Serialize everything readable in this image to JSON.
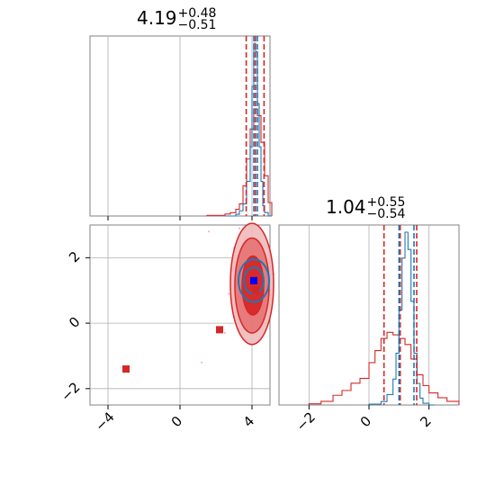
{
  "colors": {
    "red": "#d62728",
    "red_fill_outer": "#f0b9b9",
    "red_fill_mid": "#e57373",
    "red_fill_inner": "#d62728",
    "blue": "#1f77b4",
    "blue_marker": "#0000ff",
    "grid": "#b0b0b0"
  },
  "titles": {
    "param1": {
      "value": "4.19",
      "plus": "+0.48",
      "minus": "−0.51"
    },
    "param2": {
      "value": "1.04",
      "plus": "+0.55",
      "minus": "−0.54"
    }
  },
  "chart_data": {
    "type": "corner",
    "panels": [
      {
        "id": "hist-param1",
        "type": "histogram",
        "xlim": [
          -5,
          5
        ],
        "xticks": [
          -4,
          0,
          4
        ],
        "quantile_lines_red": [
          3.68,
          4.19,
          4.67
        ],
        "quantile_lines_blue": [
          4.1,
          4.3
        ],
        "blue_hist": {
          "bin_edges": [
            2.5,
            2.7,
            2.9,
            3.1,
            3.3,
            3.5,
            3.7,
            3.9,
            4.0,
            4.1,
            4.2,
            4.3,
            4.4,
            4.5,
            4.6,
            4.7,
            4.9,
            5.1
          ],
          "counts": [
            0,
            0,
            0,
            2,
            6,
            14,
            40,
            80,
            150,
            200,
            190,
            130,
            80,
            40,
            12,
            4,
            0
          ]
        },
        "red_hist": {
          "bin_edges": [
            1.5,
            2.0,
            2.5,
            2.8,
            3.1,
            3.3,
            3.5,
            3.7,
            3.9,
            4.1,
            4.3,
            4.5,
            4.7,
            4.9,
            5.1
          ],
          "counts": [
            1,
            1,
            3,
            5,
            10,
            18,
            45,
            85,
            130,
            160,
            150,
            110,
            60,
            20
          ]
        }
      },
      {
        "id": "scatter-2d",
        "type": "contour2d",
        "xlim": [
          -5,
          5
        ],
        "ylim": [
          -2.5,
          3.0
        ],
        "xticks": [
          -4,
          0,
          4
        ],
        "yticks": [
          -2,
          0,
          2
        ],
        "red_contours": [
          {
            "cx": 4.0,
            "cy": 1.2,
            "rx": 1.2,
            "ry": 1.85
          },
          {
            "cx": 4.0,
            "cy": 1.15,
            "rx": 0.95,
            "ry": 1.45
          },
          {
            "cx": 4.05,
            "cy": 1.15,
            "rx": 0.6,
            "ry": 0.9
          }
        ],
        "blue_contours": [
          {
            "cx": 4.1,
            "cy": 1.3,
            "rx": 0.85,
            "ry": 0.65
          },
          {
            "cx": 4.1,
            "cy": 1.3,
            "rx": 0.55,
            "ry": 0.4
          }
        ],
        "red_markers": [
          {
            "x": -3.0,
            "y": -1.4
          },
          {
            "x": 2.2,
            "y": -0.2
          },
          {
            "x": 4.2,
            "y": 1.0
          }
        ],
        "blue_markers": [
          {
            "x": 4.1,
            "y": 1.3
          }
        ]
      },
      {
        "id": "hist-param2",
        "type": "histogram",
        "xlim": [
          -3,
          3
        ],
        "xticks": [
          -2,
          0,
          2
        ],
        "quantile_lines_red": [
          0.5,
          1.04,
          1.59
        ],
        "quantile_lines_blue": [
          1.0,
          1.5
        ],
        "blue_hist": {
          "bin_edges": [
            0.0,
            0.4,
            0.6,
            0.8,
            0.9,
            1.0,
            1.1,
            1.2,
            1.3,
            1.4,
            1.5,
            1.6,
            1.7,
            1.8,
            2.0,
            2.2
          ],
          "counts": [
            1,
            4,
            12,
            30,
            60,
            110,
            170,
            200,
            180,
            120,
            60,
            25,
            8,
            2,
            0
          ]
        },
        "red_hist": {
          "bin_edges": [
            -2.0,
            -1.6,
            -1.2,
            -0.9,
            -0.6,
            -0.3,
            0.0,
            0.2,
            0.4,
            0.6,
            0.8,
            1.0,
            1.2,
            1.4,
            1.6,
            1.8,
            2.0,
            2.3,
            2.6,
            3.0
          ],
          "counts": [
            1,
            3,
            8,
            12,
            18,
            22,
            35,
            45,
            55,
            60,
            58,
            55,
            50,
            38,
            25,
            16,
            10,
            6,
            3
          ]
        }
      }
    ]
  }
}
